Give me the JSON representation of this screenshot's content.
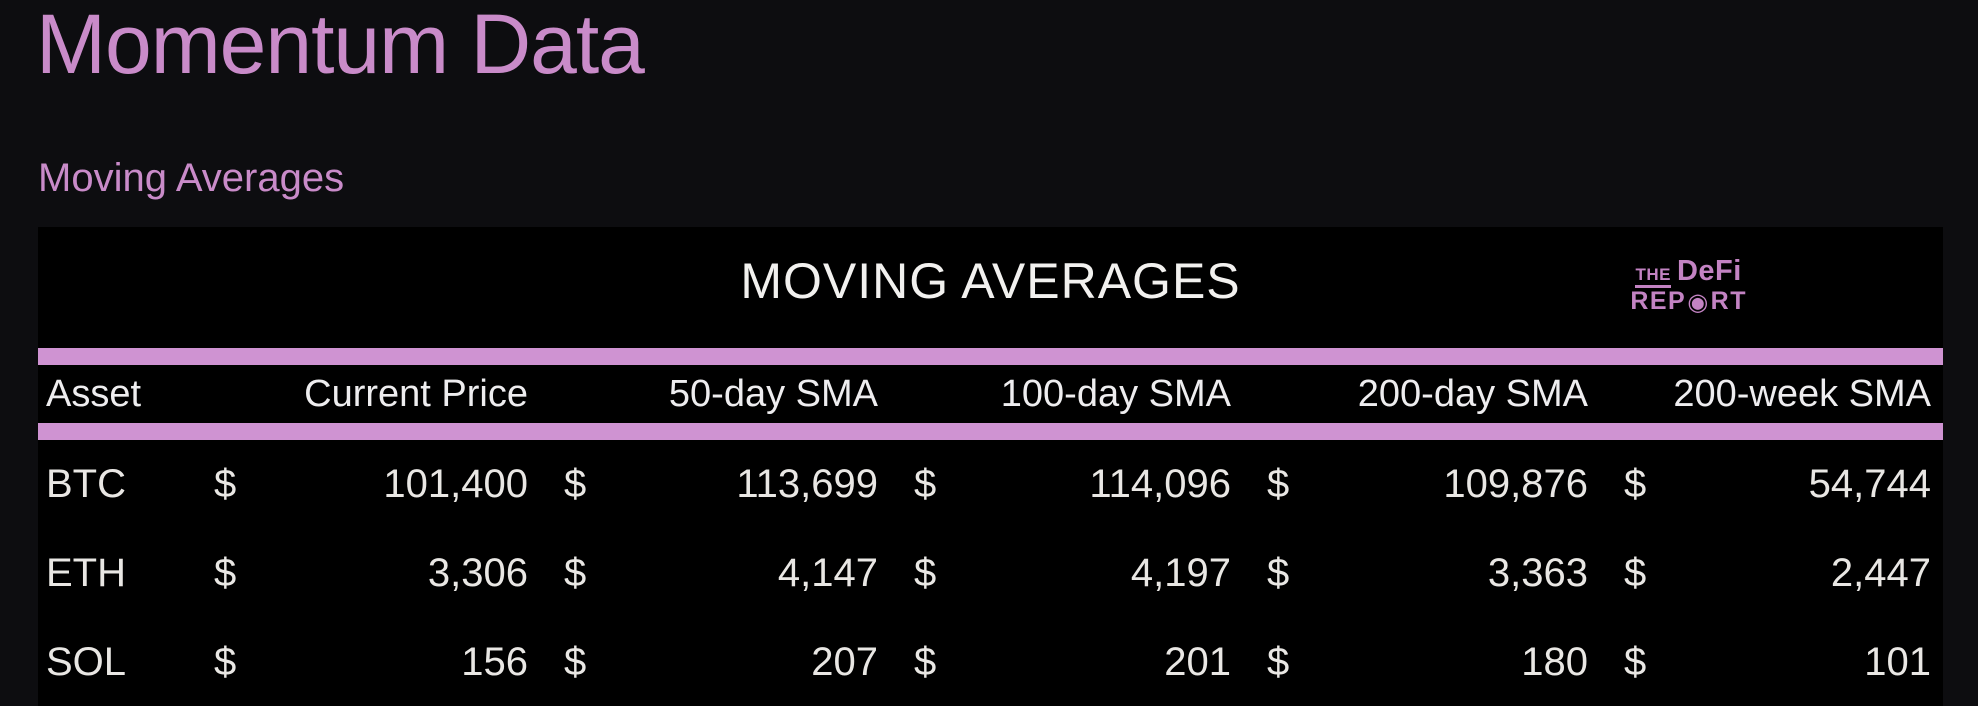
{
  "page": {
    "title": "Momentum Data",
    "section": "Moving Averages"
  },
  "table": {
    "title": "MOVING AVERAGES",
    "currency_symbol": "$",
    "headers": [
      "Asset",
      "Current Price",
      "50-day SMA",
      "100-day SMA",
      "200-day SMA",
      "200-week SMA"
    ],
    "rows": [
      {
        "asset": "BTC",
        "current_price": "101,400",
        "sma_50d": "113,699",
        "sma_100d": "114,096",
        "sma_200d": "109,876",
        "sma_200w": "54,744"
      },
      {
        "asset": "ETH",
        "current_price": "3,306",
        "sma_50d": "4,147",
        "sma_100d": "4,197",
        "sma_200d": "3,363",
        "sma_200w": "2,447"
      },
      {
        "asset": "SOL",
        "current_price": "156",
        "sma_50d": "207",
        "sma_100d": "201",
        "sma_200d": "180",
        "sma_200w": "101"
      }
    ]
  },
  "logo": {
    "the": "THE",
    "defi": "DeFi",
    "report_pre": "REP",
    "report_post": "RT",
    "target_glyph": "◉"
  },
  "colors": {
    "page_bg": "#0d0d10",
    "table_bg": "#000000",
    "accent_pink": "#c98bc9",
    "bar_pink": "#cf93d2",
    "logo_pink": "#c383c3",
    "text_white": "#e9e7e4"
  },
  "chart_data": {
    "type": "table",
    "title": "MOVING AVERAGES",
    "units": "USD",
    "columns": [
      "Asset",
      "Current Price",
      "50-day SMA",
      "100-day SMA",
      "200-day SMA",
      "200-week SMA"
    ],
    "rows": [
      [
        "BTC",
        101400,
        113699,
        114096,
        109876,
        54744
      ],
      [
        "ETH",
        3306,
        4147,
        4197,
        3363,
        2447
      ],
      [
        "SOL",
        156,
        207,
        201,
        180,
        101
      ]
    ]
  }
}
